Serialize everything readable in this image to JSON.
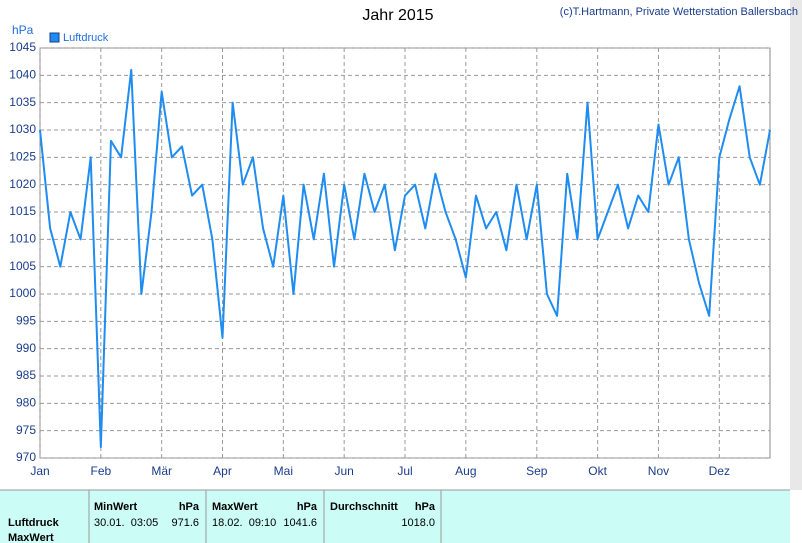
{
  "chart_data": {
    "type": "line",
    "title": "Jahr 2015",
    "credit": "(c)T.Hartmann, Private Wetterstation Ballersbach",
    "y_label": "hPa",
    "categories": [
      "Jan",
      null,
      null,
      null,
      null,
      null,
      "Feb",
      null,
      null,
      null,
      null,
      null,
      "Mär",
      null,
      null,
      null,
      null,
      null,
      "Apr",
      null,
      null,
      null,
      null,
      null,
      "Mai",
      null,
      null,
      null,
      null,
      null,
      "Jun",
      null,
      null,
      null,
      null,
      null,
      "Jul",
      null,
      null,
      null,
      null,
      null,
      "Aug",
      null,
      null,
      null,
      null,
      null,
      null,
      "Sep",
      null,
      null,
      null,
      null,
      null,
      "Okt",
      null,
      null,
      null,
      null,
      null,
      "Nov",
      null,
      null,
      null,
      null,
      null,
      "Dez",
      null,
      null,
      null,
      null,
      null
    ],
    "series": [
      {
        "name": "Luftdruck",
        "color": "#1e8cf0",
        "values": [
          1030,
          1012,
          1005,
          1015,
          1010,
          1025,
          972,
          1028,
          1025,
          1041,
          1000,
          1015,
          1037,
          1025,
          1027,
          1018,
          1020,
          1010,
          992,
          1035,
          1020,
          1025,
          1012,
          1005,
          1018,
          1000,
          1020,
          1010,
          1022,
          1005,
          1020,
          1010,
          1022,
          1015,
          1020,
          1008,
          1018,
          1020,
          1012,
          1022,
          1015,
          1010,
          1003,
          1018,
          1012,
          1015,
          1008,
          1020,
          1010,
          1020,
          1000,
          996,
          1022,
          1010,
          1035,
          1010,
          1015,
          1020,
          1012,
          1018,
          1015,
          1031,
          1020,
          1025,
          1010,
          1002,
          996,
          1025,
          1032,
          1038,
          1025,
          1020,
          1030
        ]
      }
    ],
    "ylim": [
      970,
      1045
    ],
    "yticks": [
      970,
      975,
      980,
      985,
      990,
      995,
      1000,
      1005,
      1010,
      1015,
      1020,
      1025,
      1030,
      1035,
      1040,
      1045
    ],
    "grid": true
  },
  "table": {
    "header": [
      "MinWert",
      "hPa",
      "MaxWert",
      "hPa",
      "Durchschnitt",
      "hPa"
    ],
    "rows": [
      [
        "Luftdruck",
        "30.01.  03:05",
        "971.6",
        "18.02.  09:10",
        "1041.6",
        "1018.0"
      ],
      [
        "MaxWert"
      ]
    ]
  }
}
